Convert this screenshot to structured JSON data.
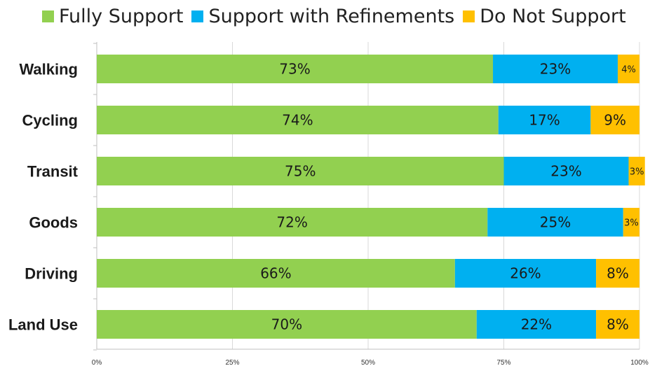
{
  "chart_data": {
    "type": "bar",
    "orientation": "horizontal",
    "stacked": true,
    "categories": [
      "Walking",
      "Cycling",
      "Transit",
      "Goods",
      "Driving",
      "Land Use"
    ],
    "series": [
      {
        "name": "Fully Support",
        "color": "#92d050",
        "values": [
          73,
          74,
          75,
          72,
          66,
          70
        ],
        "labels": [
          "73%",
          "74%",
          "75%",
          "72%",
          "66%",
          "70%"
        ]
      },
      {
        "name": "Support with Refinements",
        "color": "#00b0f0",
        "values": [
          23,
          17,
          23,
          25,
          26,
          22
        ],
        "labels": [
          "23%",
          "17%",
          "23%",
          "25%",
          "26%",
          "22%"
        ]
      },
      {
        "name": "Do Not Support",
        "color": "#ffc000",
        "values": [
          4,
          9,
          3,
          3,
          8,
          8
        ],
        "labels": [
          "4%",
          "9%",
          "3%",
          "3%",
          "8%",
          "8%"
        ]
      }
    ],
    "xlim": [
      0,
      100
    ],
    "x_ticks": [
      "0%",
      "25%",
      "50%",
      "75%",
      "100%"
    ],
    "x_tick_values": [
      0,
      25,
      50,
      75,
      100
    ],
    "grid": true,
    "legend_position": "top"
  }
}
